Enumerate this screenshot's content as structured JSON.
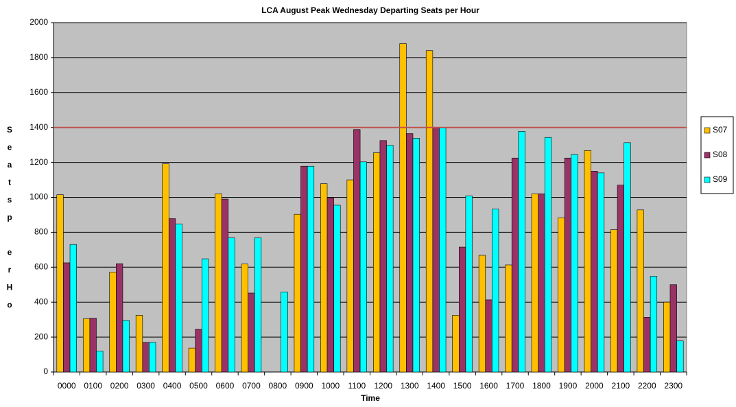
{
  "chart_data": {
    "type": "bar",
    "title": "LCA August Peak Wednesday Departing Seats per Hour",
    "x_label": "Time",
    "y_label": "Seatsp erHo",
    "categories": [
      "0000",
      "0100",
      "0200",
      "0300",
      "0400",
      "0500",
      "0600",
      "0700",
      "0800",
      "0900",
      "1000",
      "1100",
      "1200",
      "1300",
      "1400",
      "1500",
      "1600",
      "1700",
      "1800",
      "1900",
      "2000",
      "2100",
      "2200",
      "2300"
    ],
    "series": [
      {
        "name": "S07",
        "color": "#FFC000",
        "values": [
          1015,
          305,
          572,
          325,
          1192,
          137,
          1020,
          618,
          0,
          903,
          1078,
          1100,
          1255,
          1880,
          1840,
          325,
          668,
          613,
          1020,
          883,
          1268,
          815,
          928,
          400
        ]
      },
      {
        "name": "S08",
        "color": "#993366",
        "values": [
          625,
          308,
          620,
          170,
          878,
          245,
          990,
          452,
          0,
          1178,
          998,
          1388,
          1325,
          1365,
          1398,
          715,
          413,
          1225,
          1020,
          1225,
          1150,
          1070,
          313,
          500
        ]
      },
      {
        "name": "S09",
        "color": "#00FFFF",
        "values": [
          730,
          120,
          295,
          170,
          848,
          648,
          768,
          768,
          458,
          1178,
          955,
          1203,
          1298,
          1338,
          1398,
          1008,
          933,
          1378,
          1343,
          1245,
          1140,
          1313,
          548,
          178
        ]
      }
    ],
    "ylim": [
      0,
      2000
    ],
    "yticks": [
      0,
      200,
      400,
      600,
      800,
      1000,
      1200,
      1400,
      1600,
      1800,
      2000
    ],
    "grid": true,
    "background": "#C0C0C0",
    "reference_line": {
      "value": 1400,
      "color": "#C0504D"
    },
    "legend": "right"
  }
}
